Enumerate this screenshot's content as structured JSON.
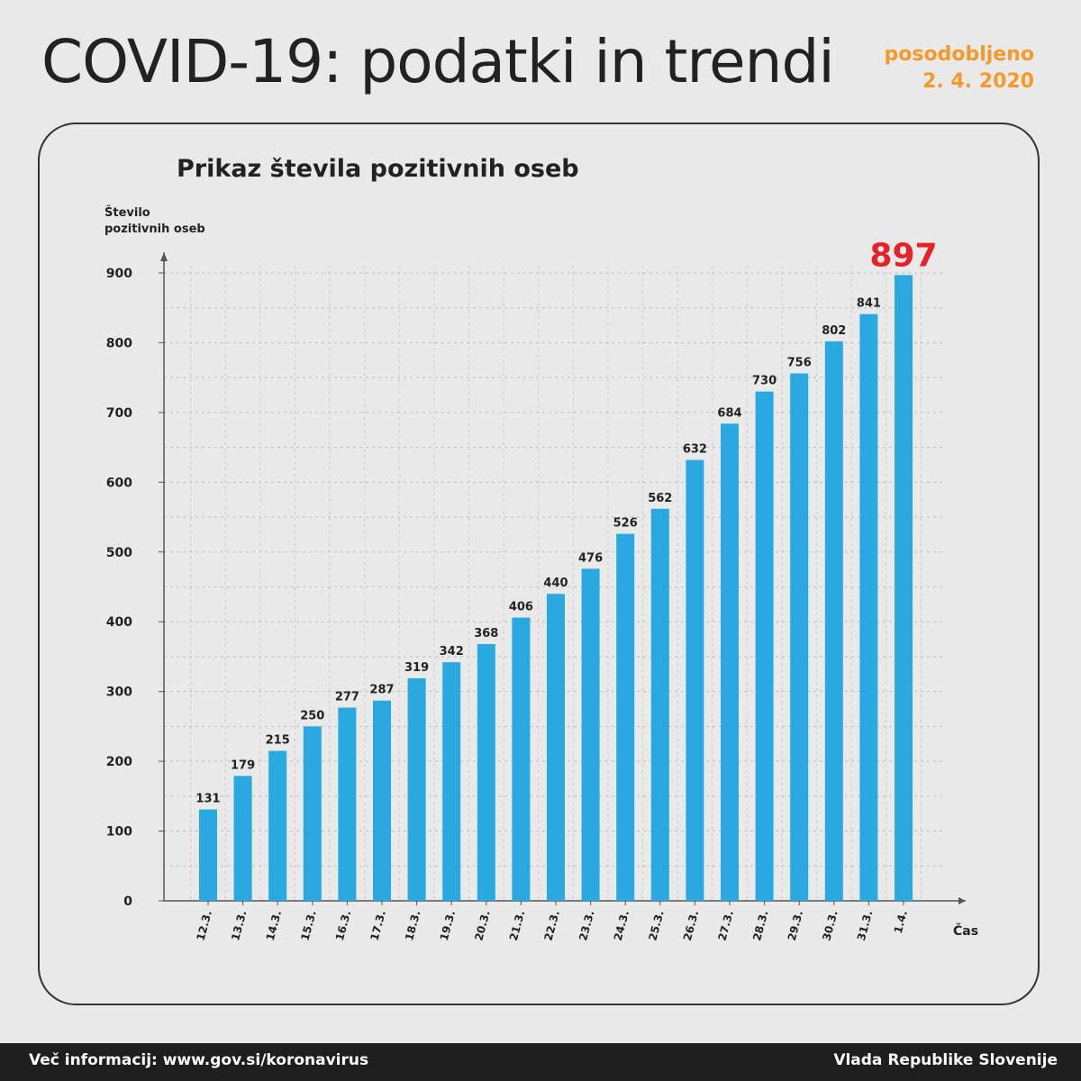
{
  "header": {
    "title": "COVID-19: podatki in trendi",
    "updated_label": "posodobljeno",
    "updated_date": "2. 4. 2020"
  },
  "footer": {
    "info": "Več informacij: www.gov.si/koronavirus",
    "publisher": "Vlada Republike Slovenije"
  },
  "colors": {
    "bar": "#29a9e0",
    "highlight": "#e8202a",
    "accent": "#f39a2b"
  },
  "chart_data": {
    "type": "bar",
    "title": "Prikaz števila pozitivnih oseb",
    "ylabel_lines": [
      "Število",
      "pozitivnih oseb"
    ],
    "xlabel": "Čas",
    "ylim": [
      0,
      900
    ],
    "yticks": [
      0,
      100,
      200,
      300,
      400,
      500,
      600,
      700,
      800,
      900
    ],
    "grid": true,
    "categories": [
      "12.3.",
      "13.3.",
      "14.3.",
      "15.3.",
      "16.3.",
      "17.3.",
      "18.3.",
      "19.3.",
      "20.3.",
      "21.3.",
      "22.3.",
      "23.3.",
      "24.3.",
      "25.3.",
      "26.3.",
      "27.3.",
      "28.3.",
      "29.3.",
      "30.3.",
      "31.3.",
      "1.4."
    ],
    "values": [
      131,
      179,
      215,
      250,
      277,
      287,
      319,
      342,
      368,
      406,
      440,
      476,
      526,
      562,
      632,
      684,
      730,
      756,
      802,
      841,
      897
    ],
    "highlight_last": true
  }
}
